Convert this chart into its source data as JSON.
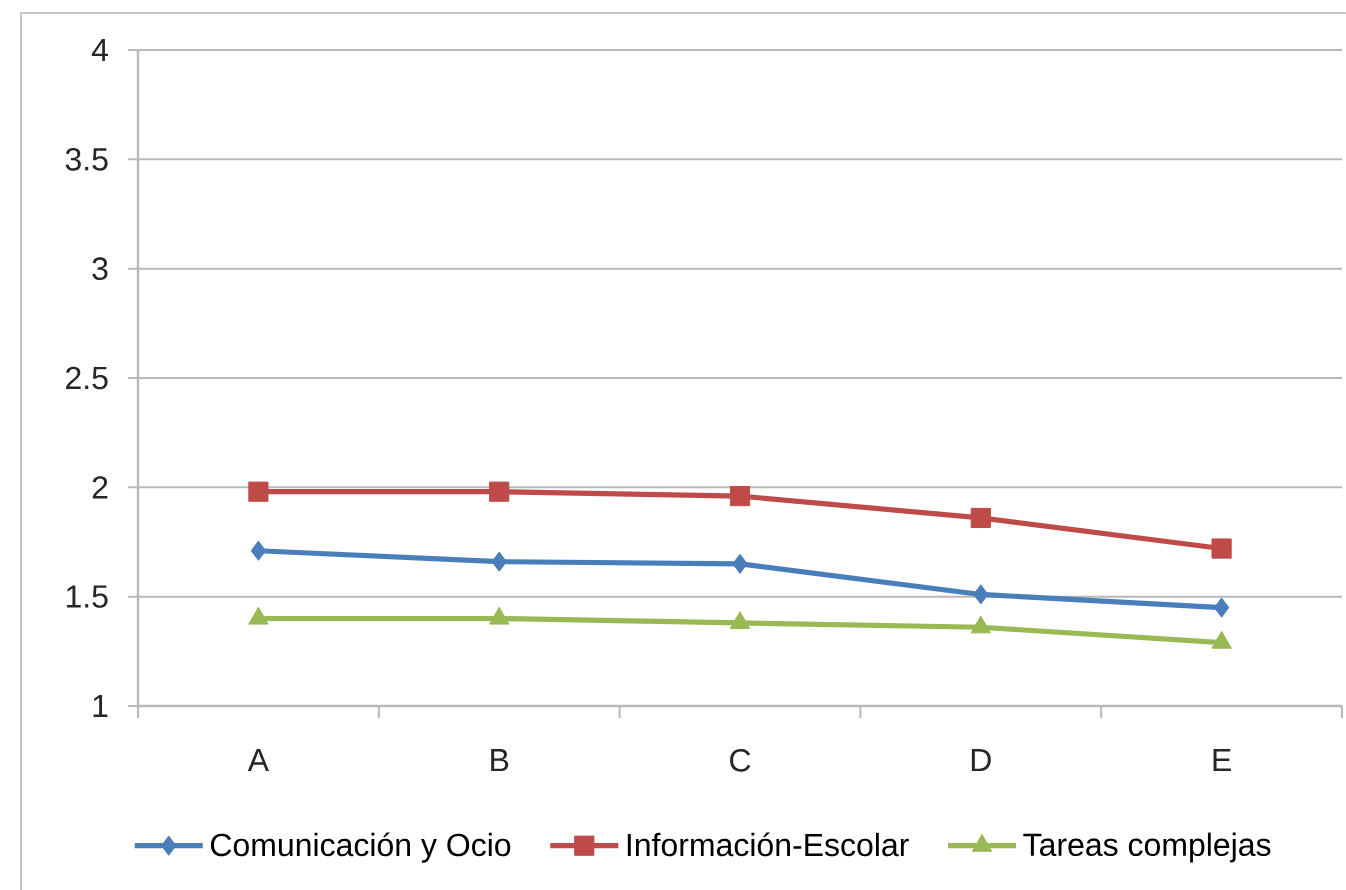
{
  "chart_data": {
    "type": "line",
    "categories": [
      "A",
      "B",
      "C",
      "D",
      "E"
    ],
    "series": [
      {
        "name": "Comunicación y Ocio",
        "color": "#4a7ebb",
        "marker": "diamond",
        "values": [
          1.71,
          1.66,
          1.65,
          1.51,
          1.45
        ]
      },
      {
        "name": "Información-Escolar",
        "color": "#be4b48",
        "marker": "square",
        "values": [
          1.98,
          1.98,
          1.96,
          1.86,
          1.72
        ]
      },
      {
        "name": "Tareas complejas",
        "color": "#98b954",
        "marker": "triangle",
        "values": [
          1.4,
          1.4,
          1.38,
          1.36,
          1.29
        ]
      }
    ],
    "ylim": [
      1,
      4
    ],
    "yticks": [
      1,
      1.5,
      2,
      2.5,
      3,
      3.5,
      4
    ],
    "grid": "y",
    "legend": "bottom"
  }
}
